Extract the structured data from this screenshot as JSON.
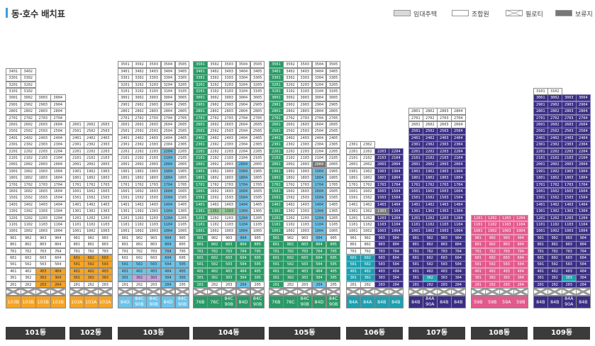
{
  "title": "동·호수 배치표",
  "legend": [
    {
      "label": "임대주택",
      "color": "#d9d9d9",
      "type": "solid"
    },
    {
      "label": "조합원",
      "color": "#ffffff",
      "type": "solid"
    },
    {
      "label": "필로티",
      "color": "#ffffff",
      "type": "cross"
    },
    {
      "label": "보류지",
      "color": "#777777",
      "type": "solid"
    }
  ],
  "colors": {
    "orange": "#f5a425",
    "sky": "#6cc3ea",
    "green": "#2b9a66",
    "lightgreen": "#9acd9a",
    "teal": "#1da0b0",
    "purple": "#3a2e85",
    "pink": "#e35a8c",
    "lavender": "#c7a3e0",
    "gray": "#d9d9d9",
    "hold": "#777777"
  },
  "buildings": [
    {
      "name": "101동",
      "lines": 4,
      "floors": 34,
      "step": 5,
      "line_floors": [
        34,
        34,
        30,
        30
      ],
      "ground": [
        "103B",
        "103B",
        "103B",
        "103B"
      ],
      "ground_color": "orange",
      "color_ranges": [
        {
          "floors": [
            2,
            4
          ],
          "lines": [
            3,
            4
          ],
          "color": "orange"
        }
      ]
    },
    {
      "name": "102동",
      "lines": 3,
      "floors": 26,
      "step": 4,
      "line_floors": [
        26,
        26,
        26
      ],
      "ground": [
        "103A",
        "103A",
        "103A"
      ],
      "ground_color": "orange",
      "color_ranges": [
        {
          "floors": [
            3,
            6
          ],
          "lines": [
            1,
            3
          ],
          "color": "orange"
        }
      ]
    },
    {
      "name": "103동",
      "lines": 5,
      "floors": 35,
      "step": 5,
      "line_floors": [
        35,
        35,
        35,
        35,
        35
      ],
      "ground": [
        "84D",
        "84C\n90B",
        "84C\n90B",
        "84D",
        "84C\n90B"
      ],
      "ground_color": "sky",
      "color_ranges": [
        {
          "floors": [
            2,
            22
          ],
          "lines": [
            4,
            4
          ],
          "color": "sky"
        },
        {
          "floors": [
            3,
            5
          ],
          "lines": [
            1,
            5
          ],
          "color": "sky"
        },
        {
          "floors": [
            3,
            3
          ],
          "lines": [
            2,
            3
          ],
          "color": "lavender"
        }
      ]
    },
    {
      "name": "104동",
      "lines": 5,
      "floors": 35,
      "step": 5,
      "line_floors": [
        35,
        35,
        35,
        35,
        35
      ],
      "ground": [
        "76B",
        "76C",
        "84C\n90B",
        "84D",
        "84C\n90B"
      ],
      "ground_color": "green",
      "color_ranges": [
        {
          "floors": [
            2,
            35
          ],
          "lines": [
            1,
            1
          ],
          "color": "green"
        },
        {
          "floors": [
            2,
            20
          ],
          "lines": [
            4,
            4
          ],
          "color": "sky"
        },
        {
          "floors": [
            3,
            8
          ],
          "lines": [
            2,
            5
          ],
          "color": "green"
        },
        {
          "floors": [
            13,
            13
          ],
          "lines": [
            2,
            3
          ],
          "color": "lightgreen"
        }
      ]
    },
    {
      "name": "105동",
      "lines": 5,
      "floors": 35,
      "step": 5,
      "line_floors": [
        35,
        35,
        35,
        35,
        35
      ],
      "ground": [
        "76B",
        "76C",
        "84C\n90B",
        "84D",
        "84C\n90B"
      ],
      "ground_color": "green",
      "color_ranges": [
        {
          "floors": [
            2,
            35
          ],
          "lines": [
            1,
            1
          ],
          "color": "green"
        },
        {
          "floors": [
            2,
            20
          ],
          "lines": [
            4,
            4
          ],
          "color": "sky"
        },
        {
          "floors": [
            3,
            8
          ],
          "lines": [
            2,
            5
          ],
          "color": "green"
        },
        {
          "floors": [
            20,
            20
          ],
          "lines": [
            4,
            4
          ],
          "color": "hold"
        }
      ]
    },
    {
      "name": "106동",
      "lines": 4,
      "floors": 23,
      "step": 4,
      "line_floors": [
        23,
        23,
        22,
        22
      ],
      "ground": [
        "84A",
        "84A",
        "84B",
        "84B"
      ],
      "ground_color": "teal",
      "color_ranges": [
        {
          "floors": [
            2,
            22
          ],
          "lines": [
            3,
            4
          ],
          "color": "purple"
        },
        {
          "floors": [
            3,
            6
          ],
          "lines": [
            1,
            2
          ],
          "color": "teal"
        },
        {
          "floors": [
            13,
            13
          ],
          "lines": [
            3,
            3
          ],
          "color": "hold"
        }
      ]
    },
    {
      "name": "107동",
      "lines": 4,
      "floors": 28,
      "step": 4,
      "line_floors": [
        28,
        28,
        28,
        28
      ],
      "ground": [
        "84B",
        "84A\n90A",
        "84B",
        "84B"
      ],
      "ground_color": "purple",
      "color_ranges": [
        {
          "floors": [
            2,
            25
          ],
          "lines": [
            1,
            4
          ],
          "color": "purple"
        },
        {
          "floors": [
            3,
            3
          ],
          "lines": [
            2,
            2
          ],
          "color": "teal"
        }
      ]
    },
    {
      "name": "108동",
      "lines": 4,
      "floors": 12,
      "step": 4,
      "line_floors": [
        12,
        12,
        12,
        12
      ],
      "ground": [
        "59B",
        "59B",
        "59A",
        "59B"
      ],
      "ground_color": "pink",
      "color_ranges": [
        {
          "floors": [
            2,
            12
          ],
          "lines": [
            1,
            4
          ],
          "color": "pink"
        }
      ]
    },
    {
      "name": "109동",
      "lines": 4,
      "floors": 31,
      "step": 4,
      "line_floors": [
        31,
        31,
        30,
        30
      ],
      "ground": [
        "84B",
        "84B",
        "84A\n90A",
        "84B"
      ],
      "ground_color": "purple",
      "color_ranges": [
        {
          "floors": [
            2,
            30
          ],
          "lines": [
            1,
            4
          ],
          "color": "purple"
        },
        {
          "floors": [
            3,
            3
          ],
          "lines": [
            3,
            3
          ],
          "color": "teal"
        }
      ]
    }
  ]
}
